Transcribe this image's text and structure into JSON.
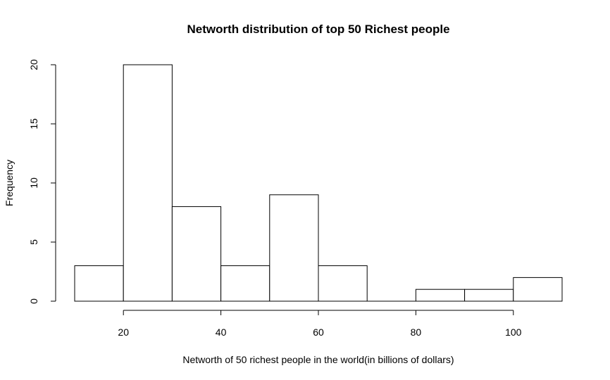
{
  "chart_data": {
    "type": "bar",
    "title": "Networth distribution of top 50 Richest people",
    "xlabel": "Networth of 50 richest people in the world(in billions of dollars)",
    "ylabel": "Frequency",
    "bins": [
      {
        "start": 10,
        "end": 20,
        "count": 3
      },
      {
        "start": 20,
        "end": 30,
        "count": 20
      },
      {
        "start": 30,
        "end": 40,
        "count": 8
      },
      {
        "start": 40,
        "end": 50,
        "count": 3
      },
      {
        "start": 50,
        "end": 60,
        "count": 9
      },
      {
        "start": 60,
        "end": 70,
        "count": 3
      },
      {
        "start": 70,
        "end": 80,
        "count": 0
      },
      {
        "start": 80,
        "end": 90,
        "count": 1
      },
      {
        "start": 90,
        "end": 100,
        "count": 1
      },
      {
        "start": 100,
        "end": 110,
        "count": 2
      }
    ],
    "xlim": [
      10,
      110
    ],
    "ylim": [
      0,
      20
    ],
    "x_ticks": [
      20,
      40,
      60,
      80,
      100
    ],
    "y_ticks": [
      0,
      5,
      10,
      15,
      20
    ],
    "grid": false,
    "legend": "none"
  }
}
